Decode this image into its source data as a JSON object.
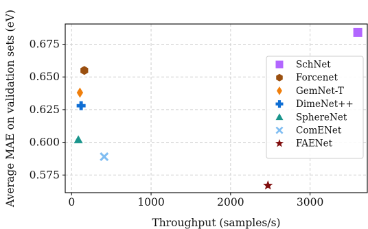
{
  "chart_data": {
    "type": "scatter",
    "title": "",
    "xlabel": "Throughput (samples/s)",
    "ylabel": "Average MAE on validation sets (eV)",
    "xlim": [
      -80,
      3720
    ],
    "ylim": [
      0.5615,
      0.6905
    ],
    "xticks": [
      0,
      1000,
      2000,
      3000
    ],
    "xtick_labels": [
      "0",
      "1000",
      "2000",
      "3000"
    ],
    "yticks": [
      0.575,
      0.6,
      0.625,
      0.65,
      0.675
    ],
    "ytick_labels": [
      "0.575",
      "0.600",
      "0.625",
      "0.650",
      "0.675"
    ],
    "grid": true,
    "legend_position": "right",
    "series": [
      {
        "name": "SchNet",
        "x": 3600,
        "y": 0.684,
        "marker": "square",
        "color": "#b266ff"
      },
      {
        "name": "Forcenet",
        "x": 160,
        "y": 0.655,
        "marker": "hexagon",
        "color": "#9a4f0f"
      },
      {
        "name": "GemNet-T",
        "x": 105,
        "y": 0.638,
        "marker": "diamond",
        "color": "#f07f0c"
      },
      {
        "name": "DimeNet++",
        "x": 120,
        "y": 0.628,
        "marker": "plus",
        "color": "#0f6ed4"
      },
      {
        "name": "SphereNet",
        "x": 85,
        "y": 0.602,
        "marker": "triangle",
        "color": "#1a958c"
      },
      {
        "name": "ComENet",
        "x": 410,
        "y": 0.589,
        "marker": "x",
        "color": "#7fbdf2"
      },
      {
        "name": "FAENet",
        "x": 2470,
        "y": 0.567,
        "marker": "star",
        "color": "#800e0e"
      }
    ]
  }
}
